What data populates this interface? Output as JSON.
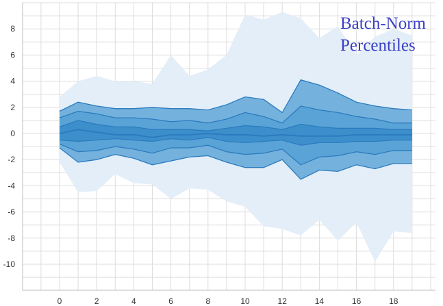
{
  "chart_data": {
    "type": "area",
    "title_lines": [
      "Batch-Norm",
      "Percentiles"
    ],
    "xlabel": "",
    "ylabel": "",
    "xlim": [
      -2,
      20
    ],
    "ylim": [
      -12,
      10
    ],
    "x_ticks": [
      0,
      2,
      4,
      6,
      8,
      10,
      12,
      14,
      16,
      18
    ],
    "y_ticks": [
      8,
      6,
      4,
      2,
      0,
      -2,
      -4,
      -6,
      -8,
      -10
    ],
    "grid": true,
    "x": [
      0,
      1,
      2,
      3,
      4,
      5,
      6,
      7,
      8,
      9,
      10,
      11,
      12,
      13,
      14,
      15,
      16,
      17,
      18,
      19
    ],
    "bands": [
      {
        "lower": [
          -2.2,
          -4.5,
          -4.4,
          -3.1,
          -3.8,
          -3.9,
          -5.0,
          -4.2,
          -4.3,
          -5.2,
          -5.6,
          -7.1,
          -7.3,
          -7.8,
          -6.6,
          -8.2,
          -6.8,
          -9.8,
          -7.5,
          -7.6
        ],
        "upper": [
          2.8,
          4.0,
          4.4,
          4.0,
          4.0,
          3.8,
          6.0,
          4.4,
          4.9,
          6.0,
          9.1,
          8.7,
          9.3,
          8.8,
          7.3,
          8.2,
          6.0,
          7.4,
          8.0,
          7.5
        ],
        "color": "#e3eef8"
      },
      {
        "lower": [
          -1.1,
          -2.2,
          -2.0,
          -1.6,
          -1.9,
          -2.4,
          -2.1,
          -1.8,
          -1.7,
          -2.2,
          -2.6,
          -2.6,
          -2.0,
          -3.5,
          -2.8,
          -2.9,
          -2.4,
          -2.7,
          -2.3,
          -2.3
        ],
        "upper": [
          1.7,
          2.4,
          2.1,
          1.9,
          1.9,
          2.0,
          1.9,
          1.9,
          1.8,
          2.2,
          2.8,
          2.6,
          1.6,
          4.1,
          3.7,
          3.1,
          2.4,
          2.1,
          1.9,
          1.8
        ],
        "color": "#74b1dc"
      },
      {
        "lower": [
          -0.8,
          -1.4,
          -1.3,
          -1.0,
          -1.2,
          -1.5,
          -1.1,
          -1.1,
          -0.9,
          -1.4,
          -1.6,
          -1.5,
          -1.2,
          -2.4,
          -1.8,
          -1.7,
          -1.4,
          -1.6,
          -1.3,
          -1.3
        ],
        "upper": [
          1.2,
          1.7,
          1.5,
          1.2,
          1.2,
          1.1,
          0.9,
          1.0,
          0.8,
          1.1,
          1.6,
          1.3,
          0.8,
          2.1,
          1.8,
          1.6,
          1.3,
          1.1,
          0.8,
          0.8
        ],
        "color": "#5aa3d6"
      },
      {
        "lower": [
          -0.5,
          -0.6,
          -0.5,
          -0.4,
          -0.5,
          -0.6,
          -0.4,
          -0.5,
          -0.3,
          -0.6,
          -0.7,
          -0.6,
          -0.5,
          -0.9,
          -0.7,
          -0.7,
          -0.6,
          -0.6,
          -0.5,
          -0.5
        ],
        "upper": [
          0.5,
          1.0,
          0.7,
          0.5,
          0.5,
          0.3,
          0.3,
          0.3,
          0.2,
          0.4,
          0.6,
          0.5,
          0.3,
          0.7,
          0.5,
          0.4,
          0.4,
          0.4,
          0.3,
          0.3
        ],
        "color": "#3d8fcc"
      }
    ],
    "median": [
      0.0,
      0.3,
      0.1,
      -0.1,
      -0.1,
      -0.3,
      -0.1,
      -0.1,
      0.0,
      -0.1,
      -0.1,
      -0.2,
      -0.1,
      -0.2,
      -0.2,
      -0.2,
      -0.1,
      -0.1,
      -0.1,
      -0.1
    ],
    "line_color": "#2b7bbf",
    "grid_color": "#dddddd",
    "axis_color": "#bbbbbb"
  }
}
